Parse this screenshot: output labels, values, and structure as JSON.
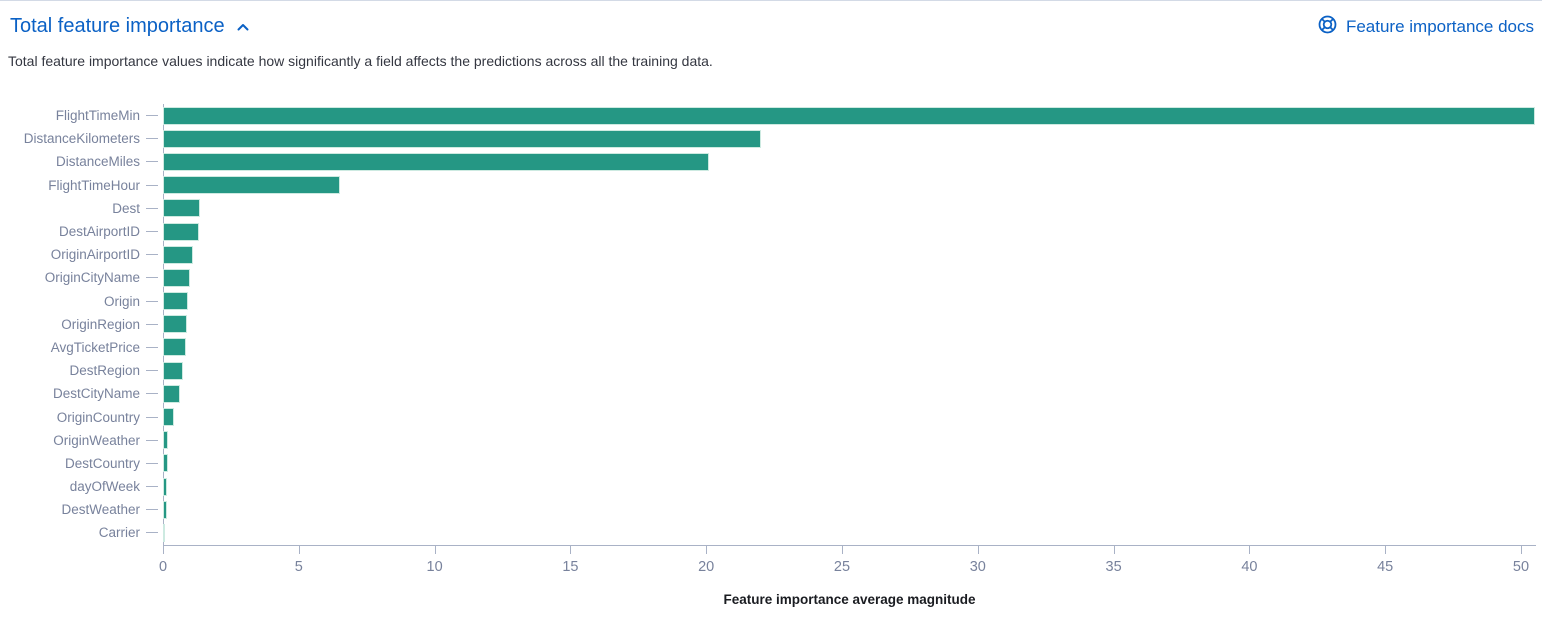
{
  "panel": {
    "title": "Total feature importance",
    "docs_link": "Feature importance docs",
    "description": "Total feature importance values indicate how significantly a field affects the predictions across all the training data."
  },
  "colors": {
    "link_blue": "#0b61c5",
    "bar_teal": "#259784",
    "axis_line": "#a9b2c6",
    "axis_label_gray": "#78829c",
    "text_dark": "#343741"
  },
  "icons": {
    "collapse": "chevron-up-icon",
    "docs": "lifebuoy-docs-icon"
  },
  "chart_data": {
    "type": "bar",
    "orientation": "horizontal",
    "title": "Total feature importance",
    "xlabel": "Feature importance average magnitude",
    "ylabel": "",
    "xlim": [
      0,
      50.5
    ],
    "x_ticks": [
      0,
      5,
      10,
      15,
      20,
      25,
      30,
      35,
      40,
      45,
      50
    ],
    "grid": false,
    "legend": false,
    "categories": [
      "FlightTimeMin",
      "DistanceKilometers",
      "DistanceMiles",
      "FlightTimeHour",
      "Dest",
      "DestAirportID",
      "OriginAirportID",
      "OriginCityName",
      "Origin",
      "OriginRegion",
      "AvgTicketPrice",
      "DestRegion",
      "DestCityName",
      "OriginCountry",
      "OriginWeather",
      "DestCountry",
      "dayOfWeek",
      "DestWeather",
      "Carrier"
    ],
    "values": [
      50.5,
      22.0,
      20.1,
      6.5,
      1.35,
      1.32,
      1.1,
      1.0,
      0.93,
      0.88,
      0.84,
      0.72,
      0.62,
      0.4,
      0.18,
      0.17,
      0.15,
      0.13,
      0.06
    ]
  }
}
